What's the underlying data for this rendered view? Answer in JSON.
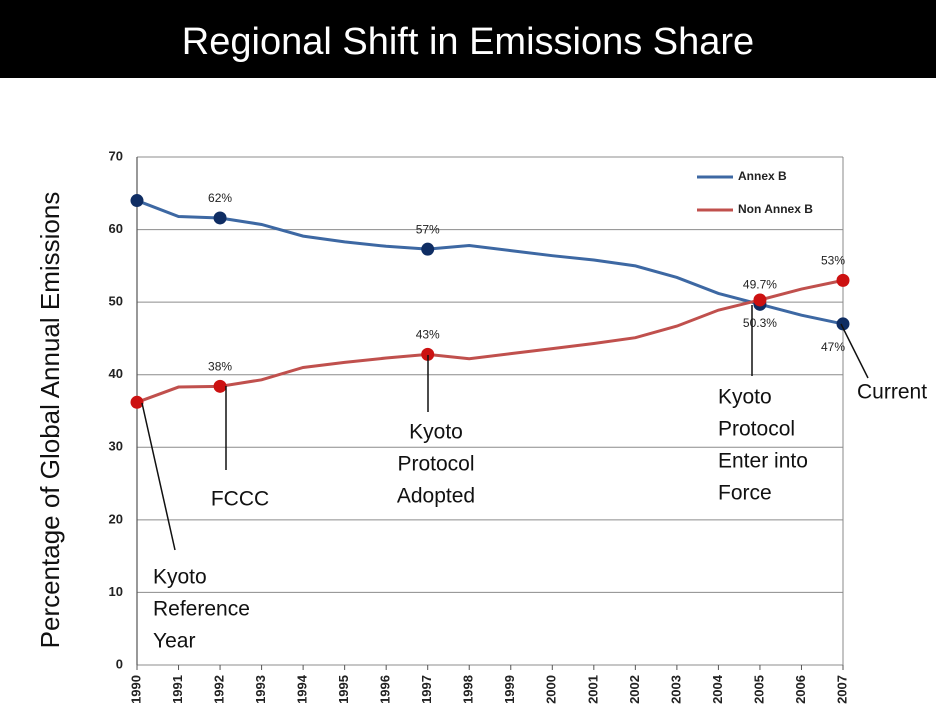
{
  "chart_data": {
    "type": "line",
    "title": "Regional Shift in Emissions Share",
    "ylabel": "Percentage of Global Annual Emissions",
    "x": [
      1990,
      1991,
      1992,
      1993,
      1994,
      1995,
      1996,
      1997,
      1998,
      1999,
      2000,
      2001,
      2002,
      2003,
      2004,
      2005,
      2006,
      2007
    ],
    "xlim": [
      1990,
      2007
    ],
    "xticks": [
      1990,
      1991,
      1992,
      1993,
      1994,
      1995,
      1996,
      1997,
      1998,
      1999,
      2000,
      2001,
      2002,
      2003,
      2004,
      2005,
      2006,
      2007
    ],
    "ylim": [
      0,
      70
    ],
    "yticks": [
      0,
      10,
      20,
      30,
      40,
      50,
      60,
      70
    ],
    "grid": true,
    "legend": "upper right",
    "markers_at": [
      1990,
      1992,
      1997,
      2005,
      2007
    ],
    "series": [
      {
        "name": "Annex B",
        "color": "#3d68a3",
        "values": [
          64,
          61.8,
          61.6,
          60.7,
          59.1,
          58.3,
          57.7,
          57.3,
          57.8,
          57.1,
          56.4,
          55.8,
          55,
          53.4,
          51.2,
          49.7,
          48.2,
          47
        ],
        "value_labels": [
          null,
          null,
          "62%",
          null,
          null,
          null,
          null,
          "57%",
          null,
          null,
          null,
          null,
          null,
          null,
          null,
          "49.7%",
          null,
          "47%"
        ]
      },
      {
        "name": "Non Annex B",
        "color": "#c0504d",
        "values": [
          36.2,
          38.3,
          38.4,
          39.3,
          41,
          41.7,
          42.3,
          42.8,
          42.2,
          42.9,
          43.6,
          44.3,
          45.1,
          46.7,
          48.9,
          50.3,
          51.8,
          53
        ],
        "value_labels": [
          null,
          null,
          "38%",
          null,
          null,
          null,
          null,
          "43%",
          null,
          null,
          null,
          null,
          null,
          null,
          null,
          "50.3%",
          null,
          "53%"
        ]
      }
    ],
    "annotations": [
      {
        "x": 1990,
        "lines": [
          "Kyoto",
          "Reference",
          "Year"
        ]
      },
      {
        "x": 1992,
        "lines": [
          "FCCC"
        ]
      },
      {
        "x": 1997,
        "lines": [
          "Kyoto",
          "Protocol",
          "Adopted"
        ]
      },
      {
        "x": 2005,
        "lines": [
          "Kyoto",
          "Protocol",
          "Enter into",
          "Force"
        ]
      },
      {
        "x": 2007,
        "lines": [
          "Current"
        ]
      }
    ]
  }
}
